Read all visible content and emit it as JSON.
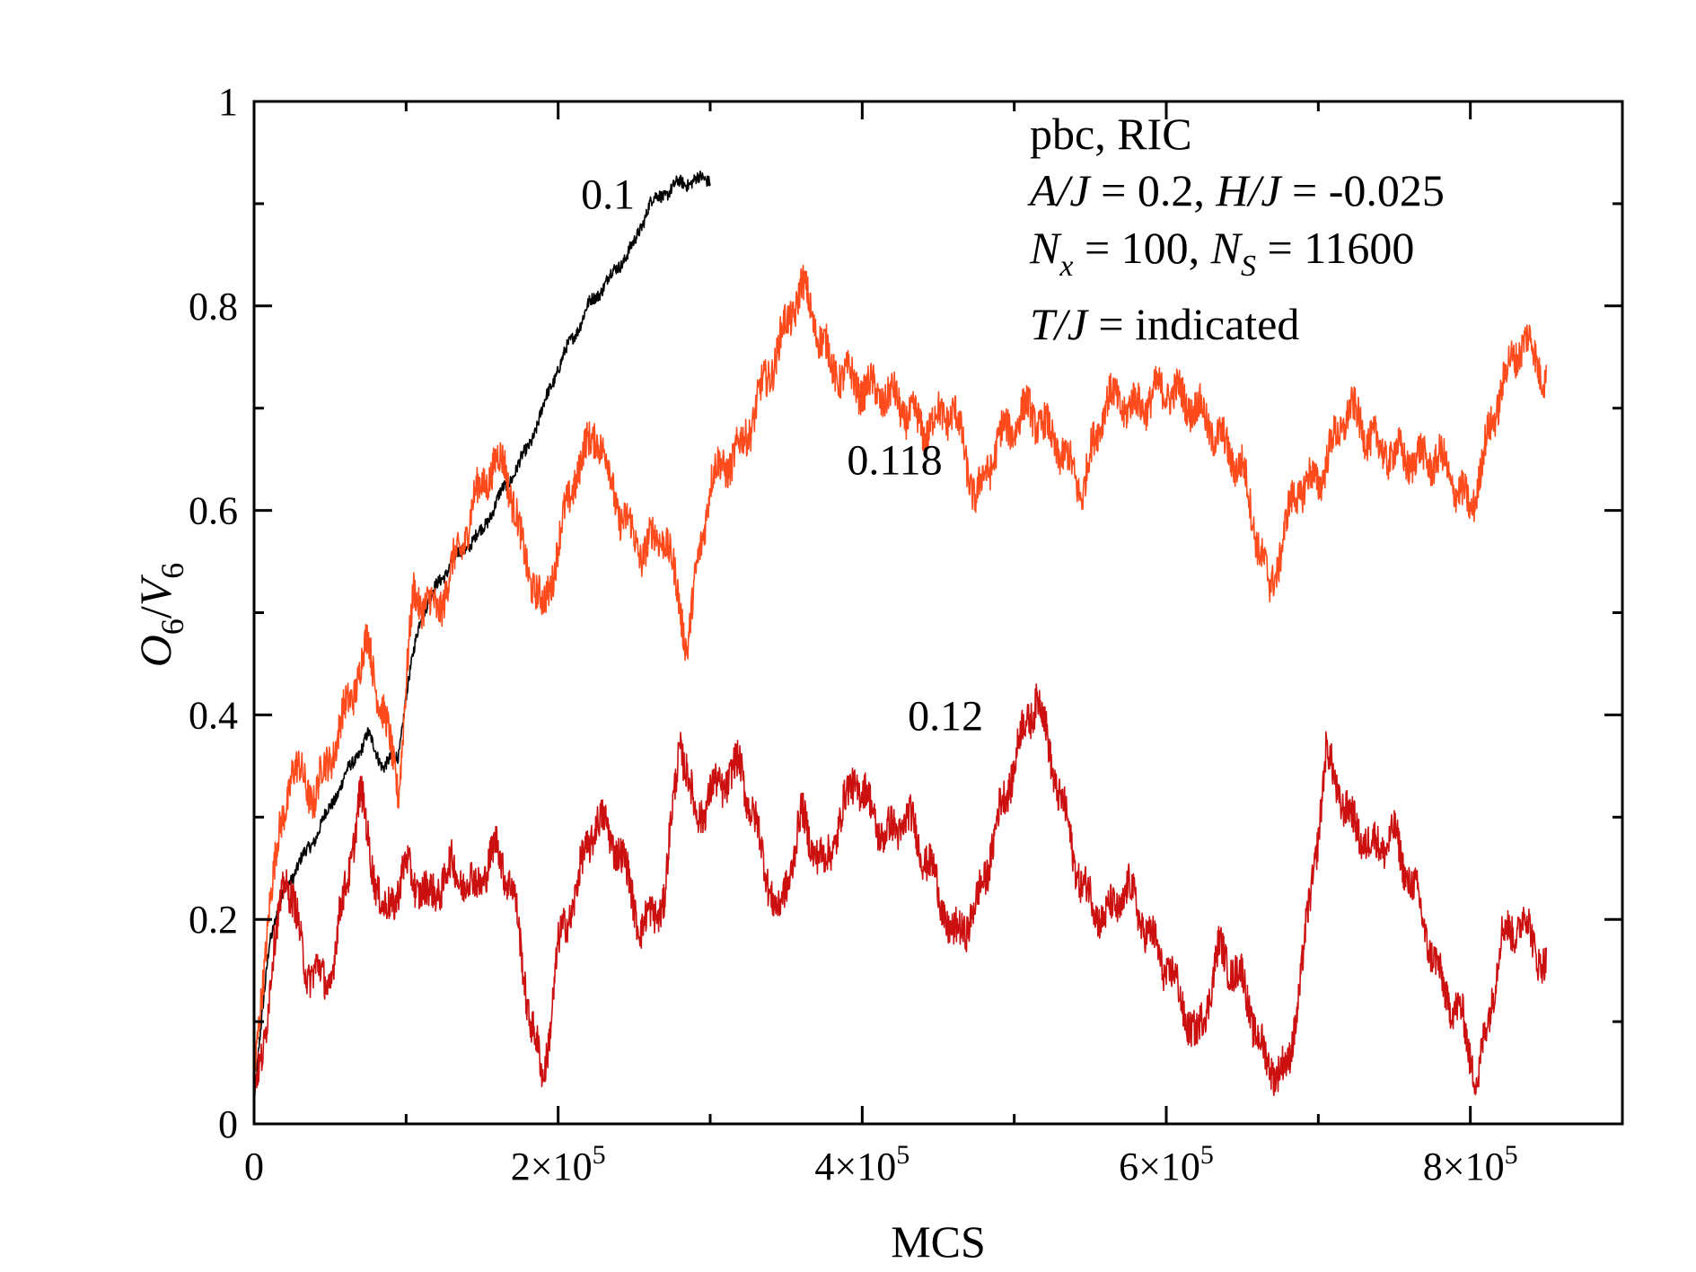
{
  "chart_data": {
    "type": "line",
    "title": "",
    "xlabel": "MCS",
    "ylabel": "O6/V6",
    "ylabel_parts": {
      "O": "O",
      "O_sub": "6",
      "slash": "/",
      "V": "V",
      "V_sub": "6"
    },
    "xlim": [
      0,
      900000
    ],
    "ylim": [
      0,
      1
    ],
    "x_ticks": [
      {
        "value": 0,
        "mant": "0",
        "exp": ""
      },
      {
        "value": 200000,
        "mant": "2×10",
        "exp": "5"
      },
      {
        "value": 400000,
        "mant": "4×10",
        "exp": "5"
      },
      {
        "value": 600000,
        "mant": "6×10",
        "exp": "5"
      },
      {
        "value": 800000,
        "mant": "8×10",
        "exp": "5"
      }
    ],
    "y_ticks": [
      {
        "value": 0,
        "label": "0"
      },
      {
        "value": 0.2,
        "label": "0.2"
      },
      {
        "value": 0.4,
        "label": "0.4"
      },
      {
        "value": 0.6,
        "label": "0.6"
      },
      {
        "value": 0.8,
        "label": "0.8"
      },
      {
        "value": 1,
        "label": "1"
      }
    ],
    "annotations": {
      "line1": "pbc, RIC",
      "line2": {
        "a": "A/J",
        "b": " = 0.2, ",
        "c": "H/J",
        "d": " = -0.025"
      },
      "line3": {
        "a": "N",
        "a_sub": "x",
        "b": " = 100, ",
        "c": "N",
        "c_sub": "S",
        "d": " = 11600"
      },
      "line4": {
        "a": "T/J",
        "b": " = indicated"
      }
    },
    "series": [
      {
        "name": "0.1",
        "color": "#000000",
        "noise": 0.006,
        "x": [
          0,
          10000,
          20000,
          40000,
          60000,
          75000,
          85000,
          95000,
          100000,
          110000,
          130000,
          150000,
          160000,
          180000,
          200000,
          220000,
          240000,
          250000,
          260000,
          280000,
          300000
        ],
        "y": [
          0.02,
          0.18,
          0.23,
          0.28,
          0.34,
          0.38,
          0.35,
          0.36,
          0.42,
          0.5,
          0.55,
          0.58,
          0.61,
          0.66,
          0.74,
          0.8,
          0.84,
          0.86,
          0.9,
          0.92,
          0.925
        ]
      },
      {
        "name": "0.118",
        "color": "#ff4a1c",
        "noise": 0.018,
        "x": [
          0,
          10000,
          25000,
          40000,
          55000,
          75000,
          85000,
          95000,
          105000,
          120000,
          135000,
          150000,
          165000,
          175000,
          190000,
          210000,
          225000,
          240000,
          255000,
          270000,
          285000,
          300000,
          320000,
          340000,
          360000,
          380000,
          400000,
          420000,
          440000,
          460000,
          475000,
          490000,
          510000,
          530000,
          545000,
          560000,
          580000,
          600000,
          620000,
          635000,
          650000,
          668000,
          685000,
          700000,
          720000,
          740000,
          760000,
          780000,
          800000,
          820000,
          835000,
          850000
        ],
        "y": [
          0.03,
          0.22,
          0.35,
          0.32,
          0.38,
          0.47,
          0.4,
          0.33,
          0.52,
          0.5,
          0.56,
          0.63,
          0.65,
          0.57,
          0.5,
          0.63,
          0.68,
          0.6,
          0.56,
          0.58,
          0.47,
          0.63,
          0.66,
          0.74,
          0.82,
          0.74,
          0.72,
          0.71,
          0.68,
          0.7,
          0.61,
          0.67,
          0.7,
          0.66,
          0.62,
          0.71,
          0.7,
          0.72,
          0.7,
          0.67,
          0.64,
          0.52,
          0.62,
          0.63,
          0.7,
          0.66,
          0.65,
          0.65,
          0.6,
          0.72,
          0.77,
          0.73
        ]
      },
      {
        "name": "0.12",
        "color": "#cc1010",
        "noise": 0.018,
        "x": [
          0,
          8000,
          20000,
          35000,
          50000,
          70000,
          85000,
          100000,
          115000,
          130000,
          145000,
          160000,
          170000,
          180000,
          190000,
          200000,
          210000,
          225000,
          240000,
          255000,
          270000,
          280000,
          290000,
          305000,
          320000,
          335000,
          345000,
          360000,
          375000,
          395000,
          415000,
          430000,
          445000,
          460000,
          475000,
          490000,
          505000,
          515000,
          530000,
          545000,
          560000,
          575000,
          590000,
          605000,
          620000,
          635000,
          650000,
          665000,
          680000,
          695000,
          705000,
          720000,
          735000,
          750000,
          765000,
          780000,
          795000,
          805000,
          820000,
          835000,
          850000
        ],
        "y": [
          0.03,
          0.1,
          0.25,
          0.15,
          0.14,
          0.32,
          0.2,
          0.25,
          0.22,
          0.25,
          0.23,
          0.27,
          0.23,
          0.12,
          0.04,
          0.17,
          0.22,
          0.3,
          0.27,
          0.19,
          0.22,
          0.38,
          0.3,
          0.33,
          0.35,
          0.26,
          0.2,
          0.3,
          0.25,
          0.34,
          0.28,
          0.3,
          0.25,
          0.18,
          0.21,
          0.3,
          0.38,
          0.42,
          0.32,
          0.23,
          0.2,
          0.23,
          0.18,
          0.14,
          0.08,
          0.17,
          0.14,
          0.06,
          0.05,
          0.22,
          0.36,
          0.3,
          0.27,
          0.28,
          0.22,
          0.14,
          0.1,
          0.04,
          0.18,
          0.2,
          0.15
        ]
      }
    ],
    "curve_labels": [
      {
        "text": "0.1",
        "x": 215000,
        "y": 0.895
      },
      {
        "text": "0.118",
        "x": 390000,
        "y": 0.635
      },
      {
        "text": "0.12",
        "x": 430000,
        "y": 0.385
      }
    ]
  }
}
